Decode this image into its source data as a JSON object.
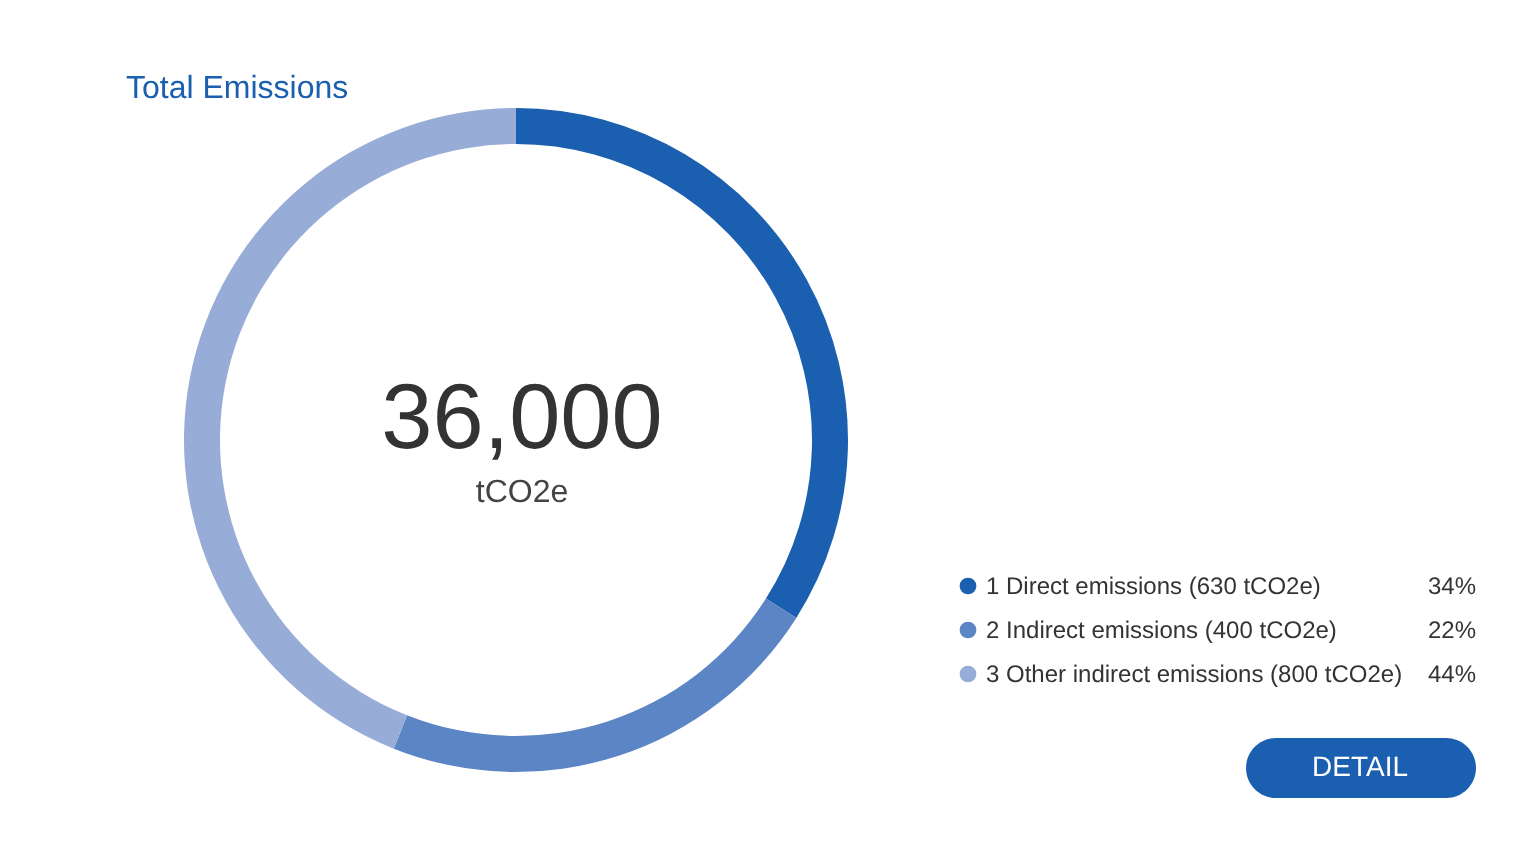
{
  "chart_data": {
    "type": "donut",
    "title": "Total Emissions",
    "categories": [
      "1 Direct emissions (630 tCO2e)",
      "2 Indirect emissions (400 tCO2e)",
      "3 Other indirect emissions (800 tCO2e)"
    ],
    "values": [
      34,
      22,
      44
    ],
    "colors": [
      "#1a5fb0",
      "#5b85c4",
      "#97acd6"
    ],
    "value_labels": [
      "34%",
      "22%",
      "44%"
    ],
    "annotations": [
      "36,000",
      "tCO2e",
      "DETAIL"
    ],
    "legend": "bottom right"
  }
}
